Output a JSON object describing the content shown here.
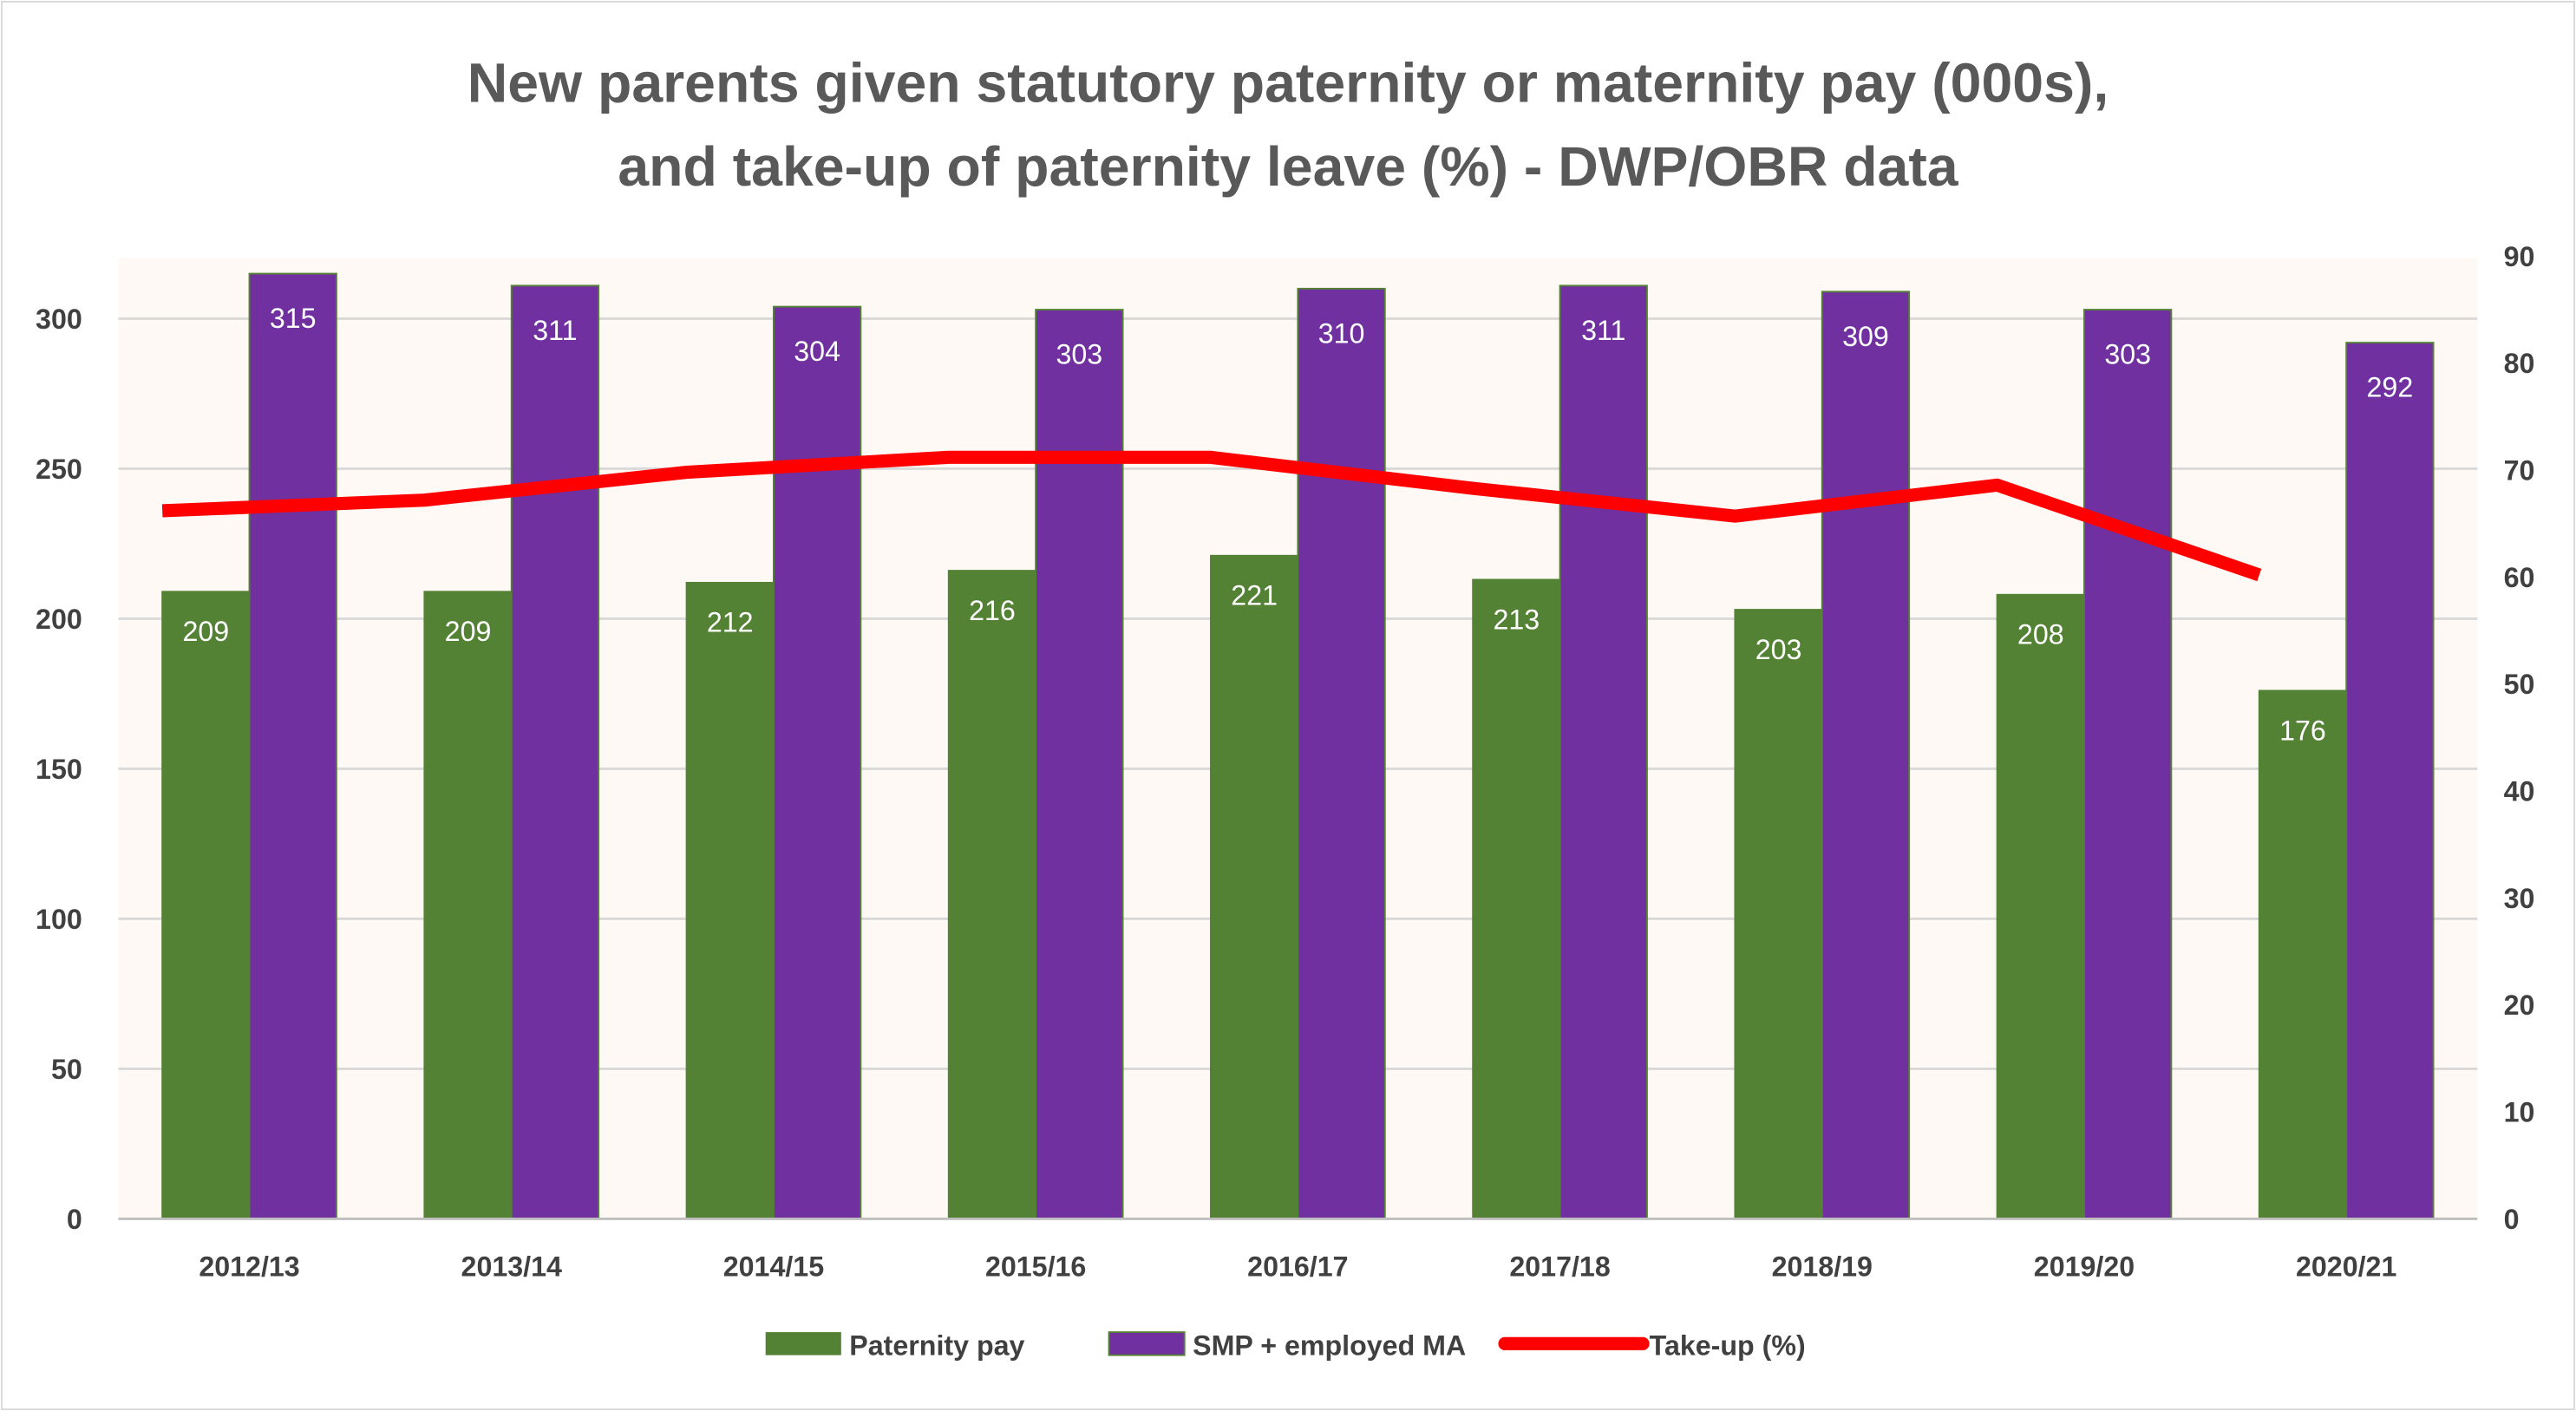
{
  "chart_data": {
    "type": "bar",
    "title": [
      "New parents given statutory paternity or maternity pay (000s),",
      "and take-up of paternity leave (%) - DWP/OBR data"
    ],
    "categories": [
      "2012/13",
      "2013/14",
      "2014/15",
      "2015/16",
      "2016/17",
      "2017/18",
      "2018/19",
      "2019/20",
      "2020/21"
    ],
    "series": [
      {
        "name": "Paternity pay",
        "type": "bar",
        "axis": "left",
        "color": "#548235",
        "values": [
          209,
          209,
          212,
          216,
          221,
          213,
          203,
          208,
          176
        ]
      },
      {
        "name": "SMP + employed MA",
        "type": "bar",
        "axis": "left",
        "color": "#7030A0",
        "values": [
          315,
          311,
          304,
          303,
          310,
          311,
          309,
          303,
          292
        ]
      },
      {
        "name": "Take-up (%)",
        "type": "line",
        "axis": "right",
        "color": "#FF0000",
        "values": [
          66.2,
          67.2,
          69.8,
          71.2,
          71.2,
          68.3,
          65.7,
          68.6,
          60.2
        ]
      }
    ],
    "ylim": [
      0,
      320
    ],
    "yticks": [
      "0",
      "50",
      "100",
      "150",
      "200",
      "250",
      "300"
    ],
    "y2lim": [
      0,
      90
    ],
    "y2ticks": [
      "0",
      "10",
      "20",
      "30",
      "40",
      "50",
      "60",
      "70",
      "80",
      "90"
    ],
    "grid": true,
    "legend": "bottom",
    "plot_background": "#FFF9F5"
  }
}
